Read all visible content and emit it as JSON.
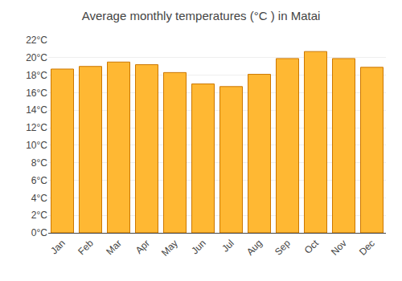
{
  "chart_data": {
    "type": "bar",
    "title": "Average monthly temperatures (°C ) in Matai",
    "categories": [
      "Jan",
      "Feb",
      "Mar",
      "Apr",
      "May",
      "Jun",
      "Jul",
      "Aug",
      "Sep",
      "Oct",
      "Nov",
      "Dec"
    ],
    "values": [
      18.7,
      19.0,
      19.5,
      19.2,
      18.3,
      17.0,
      16.7,
      18.1,
      19.9,
      20.7,
      19.9,
      18.9
    ],
    "color": "#FFB833",
    "ylim": [
      0,
      22
    ],
    "yticks": [
      {
        "value": 0,
        "label": "0°C"
      },
      {
        "value": 2,
        "label": "2°C"
      },
      {
        "value": 4,
        "label": "4°C"
      },
      {
        "value": 6,
        "label": "6°C"
      },
      {
        "value": 8,
        "label": "8°C"
      },
      {
        "value": 10,
        "label": "10°C"
      },
      {
        "value": 12,
        "label": "12°C"
      },
      {
        "value": 14,
        "label": "14°C"
      },
      {
        "value": 16,
        "label": "16°C"
      },
      {
        "value": 18,
        "label": "18°C"
      },
      {
        "value": 20,
        "label": "20°C"
      },
      {
        "value": 22,
        "label": "22°C"
      }
    ],
    "grid": true
  }
}
